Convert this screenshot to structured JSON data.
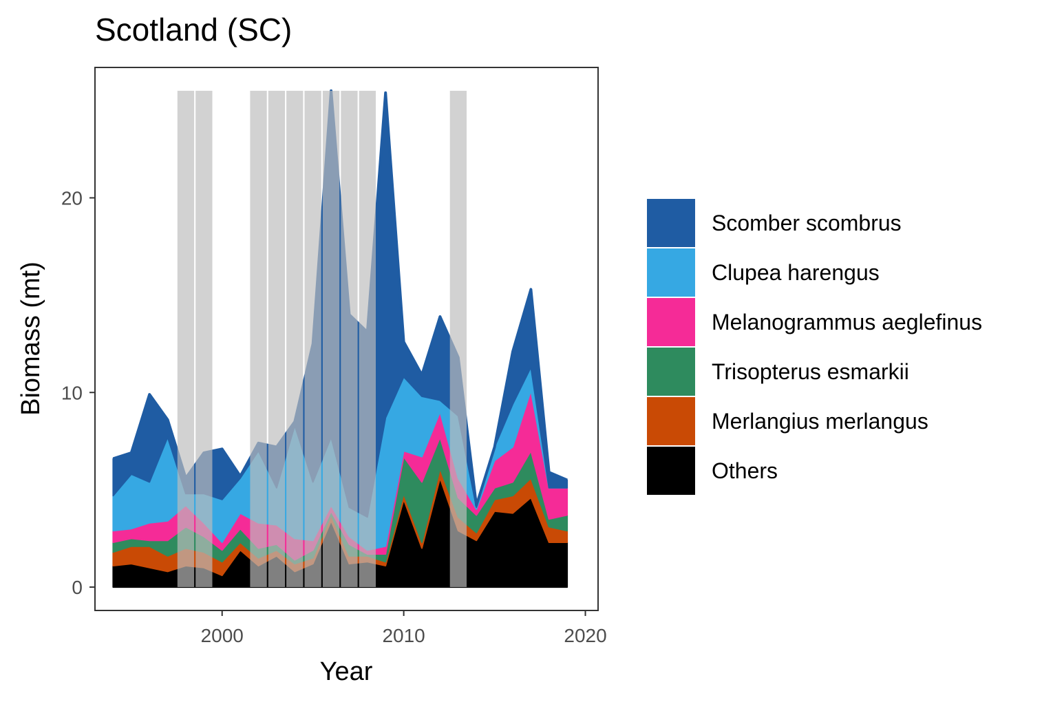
{
  "chart_data": {
    "type": "area",
    "title": "Scotland (SC)",
    "xlabel": "Year",
    "ylabel": "Biomass (mt)",
    "xlim": [
      1993,
      2020.7
    ],
    "ylim": [
      -1.2,
      26.7
    ],
    "x_ticks": [
      2000,
      2010,
      2020
    ],
    "y_ticks": [
      0,
      10,
      20
    ],
    "grid": false,
    "legend_position": "right",
    "stacked": true,
    "x": [
      1994,
      1995,
      1996,
      1997,
      1998,
      1999,
      2000,
      2001,
      2002,
      2003,
      2004,
      2005,
      2006,
      2007,
      2008,
      2009,
      2010,
      2011,
      2012,
      2013,
      2014,
      2015,
      2016,
      2017,
      2018,
      2019
    ],
    "series": [
      {
        "name": "Others",
        "color": "#000000",
        "values": [
          1.1,
          1.2,
          1.0,
          0.8,
          1.1,
          1.0,
          0.6,
          1.9,
          1.1,
          1.6,
          0.8,
          1.2,
          3.4,
          1.2,
          1.3,
          1.1,
          4.5,
          2.0,
          5.6,
          2.9,
          2.4,
          3.9,
          3.8,
          4.6,
          2.3,
          2.3
        ]
      },
      {
        "name": "Merlangius merlangus",
        "color": "#C94A05",
        "values": [
          0.7,
          0.9,
          1.1,
          0.8,
          0.9,
          0.8,
          0.7,
          0.4,
          0.4,
          0.3,
          0.4,
          0.3,
          0.3,
          0.4,
          0.3,
          0.2,
          0.3,
          0.3,
          0.5,
          0.7,
          0.4,
          0.6,
          0.9,
          1.0,
          0.8,
          0.6
        ]
      },
      {
        "name": "Trisopterus esmarkii",
        "color": "#2E8B5E",
        "values": [
          0.5,
          0.4,
          0.3,
          0.8,
          1.1,
          0.8,
          0.6,
          0.7,
          0.5,
          0.3,
          0.2,
          0.4,
          0.2,
          0.6,
          0.1,
          0.4,
          1.9,
          3.1,
          1.6,
          1.0,
          0.9,
          0.6,
          0.7,
          1.4,
          0.4,
          0.8
        ]
      },
      {
        "name": "Melanogrammus aeglefinus",
        "color": "#F52B97",
        "values": [
          0.6,
          0.5,
          0.9,
          1.0,
          1.1,
          0.7,
          0.4,
          0.8,
          1.3,
          1.0,
          1.1,
          0.5,
          0.3,
          0.4,
          0.2,
          0.4,
          0.3,
          1.3,
          1.3,
          1.0,
          0.3,
          1.4,
          1.8,
          3.1,
          1.6,
          1.4
        ]
      },
      {
        "name": "Clupea harengus",
        "color": "#36A8E3",
        "values": [
          1.8,
          2.8,
          2.1,
          4.3,
          0.6,
          1.5,
          2.2,
          1.8,
          3.7,
          1.9,
          5.8,
          3.0,
          3.5,
          1.5,
          1.7,
          6.6,
          3.8,
          3.1,
          0.6,
          3.2,
          0.1,
          0.7,
          2.2,
          1.2,
          0.0,
          0.0
        ]
      },
      {
        "name": "Scomber scombrus",
        "color": "#1F5CA3",
        "values": [
          1.9,
          1.1,
          4.5,
          0.9,
          0.8,
          2.1,
          2.6,
          0.1,
          0.4,
          2.1,
          0.2,
          7.1,
          17.8,
          9.9,
          9.5,
          16.7,
          1.8,
          1.1,
          4.3,
          3.0,
          0.1,
          0.0,
          2.7,
          4.0,
          0.8,
          0.4
        ]
      }
    ],
    "highlight_years": [
      1998,
      1999,
      2002,
      2003,
      2004,
      2005,
      2006,
      2007,
      2008,
      2013
    ],
    "highlight_color": "#bdbdbd"
  }
}
